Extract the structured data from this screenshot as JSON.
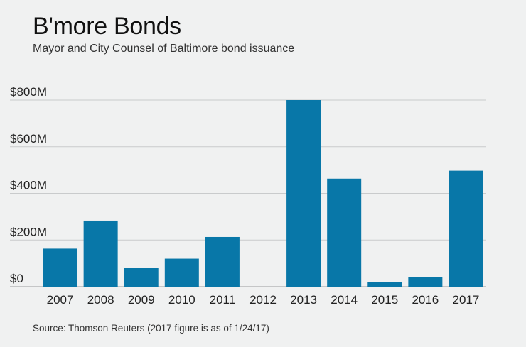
{
  "title": "B'more Bonds",
  "subtitle": "Mayor and City Counsel of Baltimore bond issuance",
  "source": "Source: Thomson Reuters (2017 figure is as of 1/24/17)",
  "colors": {
    "bar": "#0877a8",
    "grid": "#c9cbcc",
    "background": "#f0f1f1"
  },
  "chart_data": {
    "type": "bar",
    "title": "B'more Bonds",
    "subtitle": "Mayor and City Counsel of Baltimore bond issuance",
    "xlabel": "",
    "ylabel": "",
    "categories": [
      "2007",
      "2008",
      "2009",
      "2010",
      "2011",
      "2012",
      "2013",
      "2014",
      "2015",
      "2016",
      "2017"
    ],
    "values": [
      163,
      283,
      80,
      120,
      213,
      0,
      800,
      463,
      20,
      40,
      497
    ],
    "value_unit": "millions of dollars",
    "ylim": [
      0,
      800
    ],
    "yticks": [
      0,
      200,
      400,
      600,
      800
    ],
    "ytick_labels": [
      "$0",
      "$200M",
      "$400M",
      "$600M",
      "$800M"
    ],
    "grid": true,
    "legend": "none"
  }
}
